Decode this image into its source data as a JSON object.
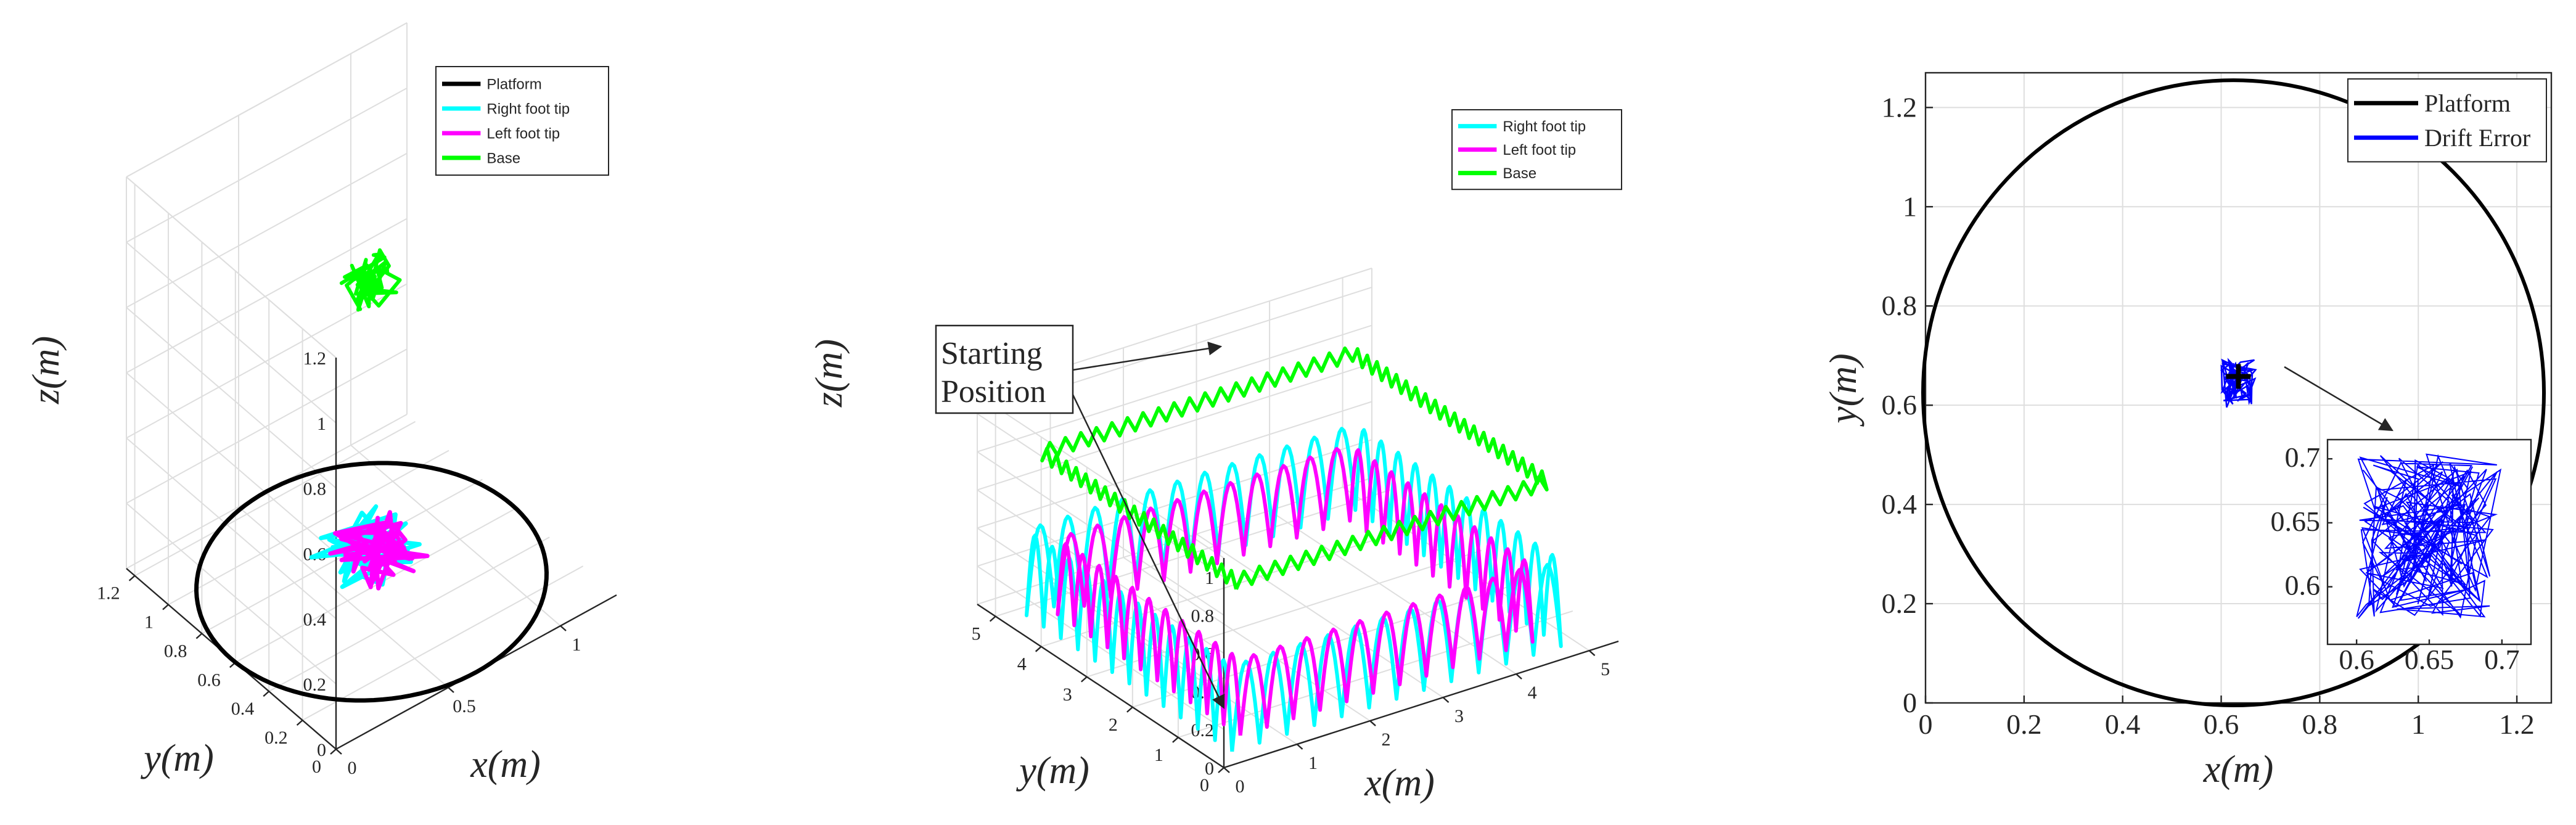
{
  "chart_data": [
    {
      "type": "line3d",
      "subtitle": "",
      "xlabel": "x(m)",
      "ylabel": "y(m)",
      "zlabel": "z(m)",
      "xlim": [
        0,
        1.25
      ],
      "ylim": [
        0,
        1.25
      ],
      "zlim": [
        0,
        1.2
      ],
      "x_ticks": [
        "0",
        "0.5",
        "1"
      ],
      "y_ticks": [
        "0",
        "0.2",
        "0.4",
        "0.6",
        "0.8",
        "1",
        "1.2"
      ],
      "z_ticks": [
        "0",
        "0.2",
        "0.4",
        "0.6",
        "0.8",
        "1",
        "1.2"
      ],
      "grid": true,
      "legend": "top-right",
      "series": [
        {
          "name": "Platform",
          "color": "#000000",
          "shape": "circle",
          "center": [
            0.625,
            0.625,
            0
          ],
          "radius": 0.625
        },
        {
          "name": "Right foot tip",
          "color": "#00ffff",
          "region_center": [
            0.62,
            0.64,
            0.05
          ]
        },
        {
          "name": "Left foot tip",
          "color": "#ff00ff",
          "region_center": [
            0.63,
            0.63,
            0.05
          ]
        },
        {
          "name": "Base",
          "color": "#00ff00",
          "region_center": [
            0.62,
            0.64,
            0.88
          ]
        }
      ]
    },
    {
      "type": "line3d",
      "subtitle": "",
      "xlabel": "x(m)",
      "ylabel": "y(m)",
      "zlabel": "z(m)",
      "xlim": [
        0,
        5.4
      ],
      "ylim": [
        0,
        5.4
      ],
      "zlim": [
        0,
        1.1
      ],
      "x_ticks": [
        "0",
        "1",
        "2",
        "3",
        "4",
        "5"
      ],
      "y_ticks": [
        "0",
        "1",
        "2",
        "3",
        "4",
        "5"
      ],
      "z_ticks": [
        "0",
        "0.2",
        "0.4",
        "0.6",
        "0.8",
        "1"
      ],
      "grid": true,
      "legend": "top-right",
      "series": [
        {
          "name": "Right foot tip",
          "color": "#00ffff",
          "path": [
            [
              0.3,
              0.3
            ],
            [
              4.8,
              0.3
            ],
            [
              4.8,
              4.8
            ],
            [
              0.3,
              4.8
            ],
            [
              0.3,
              0.3
            ]
          ],
          "step_height": 0.45
        },
        {
          "name": "Left foot tip",
          "color": "#ff00ff",
          "path": [
            [
              0.6,
              0.6
            ],
            [
              4.6,
              0.6
            ],
            [
              4.6,
              4.6
            ],
            [
              0.6,
              4.6
            ],
            [
              0.6,
              0.6
            ]
          ],
          "step_height": 0.4
        },
        {
          "name": "Base",
          "color": "#00ff00",
          "path": [
            [
              0.45,
              0.45
            ],
            [
              4.7,
              0.45
            ],
            [
              4.7,
              4.7
            ],
            [
              0.45,
              4.7
            ],
            [
              0.45,
              0.45
            ]
          ],
          "height": 0.85
        }
      ],
      "annotation": {
        "lines": [
          "Starting",
          "Position"
        ]
      }
    },
    {
      "type": "line",
      "subtitle": "",
      "xlabel": "x(m)",
      "ylabel": "y(m)",
      "xlim": [
        0,
        1.27
      ],
      "ylim": [
        0,
        1.27
      ],
      "x_ticks": [
        "0",
        "0.2",
        "0.4",
        "0.6",
        "0.8",
        "1",
        "1.2"
      ],
      "y_ticks": [
        "0",
        "0.2",
        "0.4",
        "0.6",
        "0.8",
        "1",
        "1.2"
      ],
      "grid": true,
      "legend": "top-right",
      "series": [
        {
          "name": "Platform",
          "color": "#000000",
          "shape": "circle",
          "center": [
            0.625,
            0.625
          ],
          "radius": 0.63
        },
        {
          "name": "Drift Error",
          "color": "#0000ff",
          "region_center": [
            0.635,
            0.645
          ]
        }
      ],
      "marker": {
        "x": 0.635,
        "y": 0.658
      },
      "inset": {
        "xlim": [
          0.58,
          0.72
        ],
        "ylim": [
          0.555,
          0.715
        ],
        "x_ticks": [
          "0.6",
          "0.65",
          "0.7"
        ],
        "y_ticks": [
          "0.6",
          "0.65",
          "0.7"
        ]
      }
    }
  ]
}
